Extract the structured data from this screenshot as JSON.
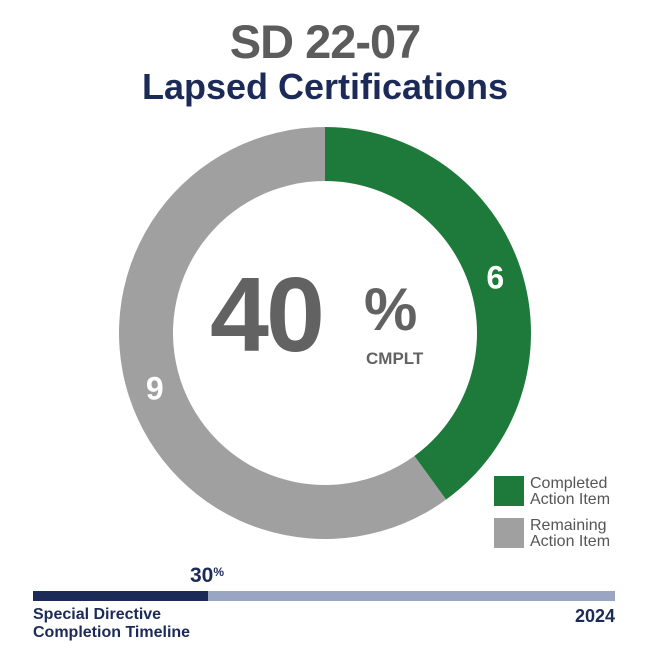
{
  "header": {
    "title": "SD 22-07",
    "subtitle": "Lapsed Certifications"
  },
  "center": {
    "percent": "40",
    "percent_sign": "%",
    "caption": "CMPLT"
  },
  "timeline": {
    "value": "30",
    "value_suffix": "%",
    "progress_fraction": 0.3,
    "caption_line1": "Special Directive",
    "caption_line2": "Completion Timeline",
    "end_label": "2024"
  },
  "colors": {
    "completed": "#1e7a3a",
    "remaining": "#a0a0a0",
    "title_gray": "#5c5c5c",
    "navy": "#1b2a57",
    "timeline_track": "#9aa5c4"
  },
  "chart_data": {
    "type": "pie",
    "style": "donut",
    "slices": [
      {
        "label": "Completed Action Item",
        "value": 6,
        "color": "#1e7a3a"
      },
      {
        "label": "Remaining Action Item",
        "value": 9,
        "color": "#a0a0a0"
      }
    ],
    "legend": {
      "position": "bottom-right",
      "entries": [
        "Completed Action Item",
        "Remaining Action Item"
      ]
    }
  }
}
